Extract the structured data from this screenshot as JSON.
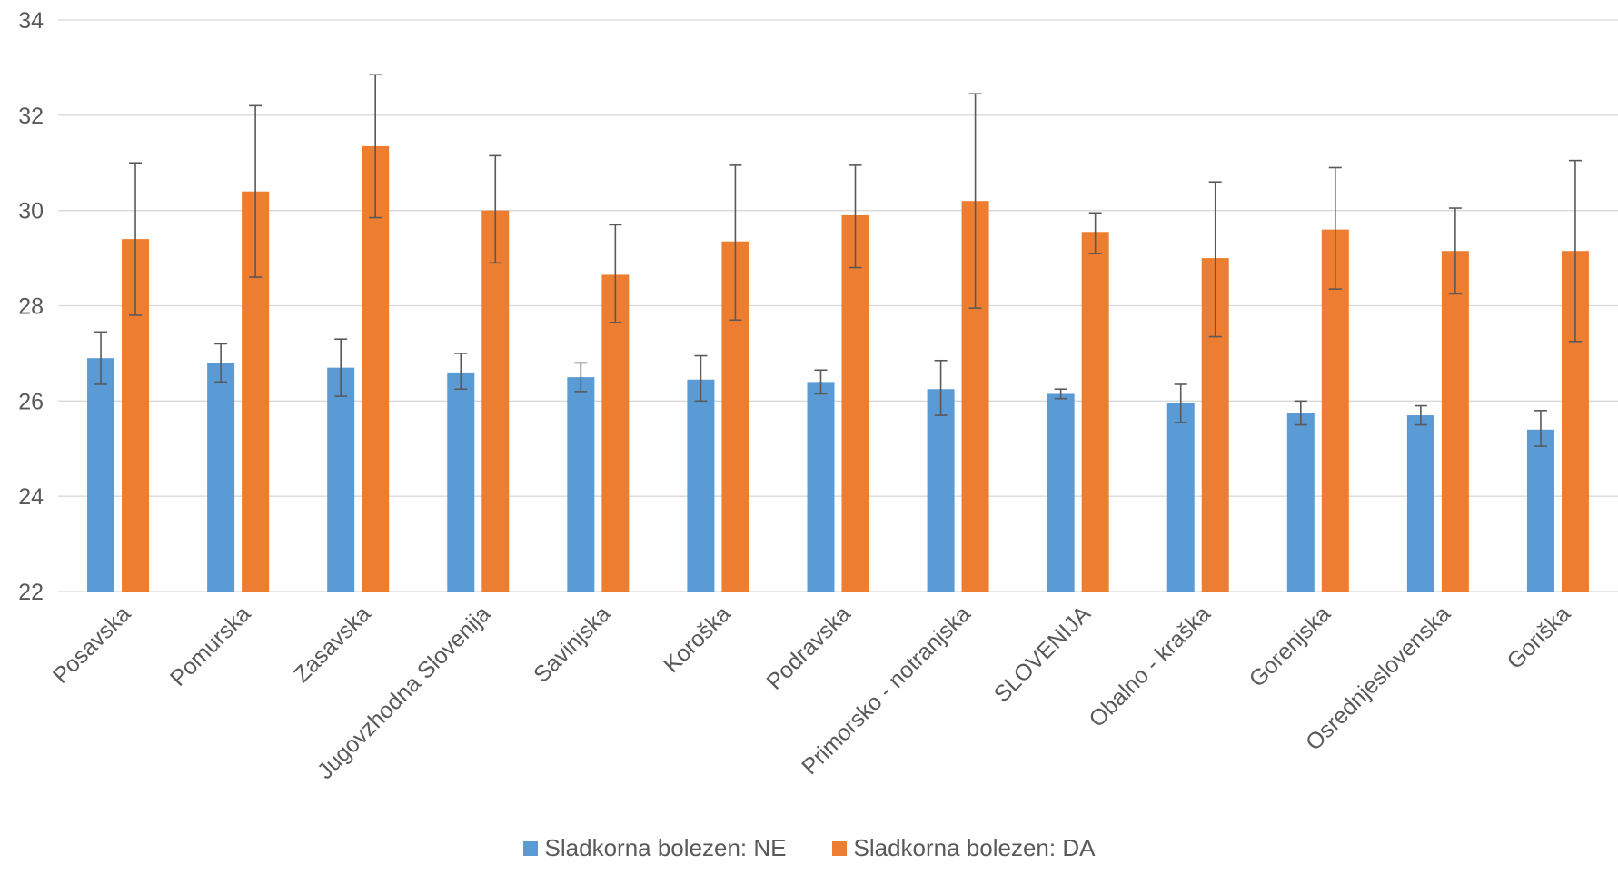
{
  "chart_data": {
    "type": "bar",
    "title": "",
    "xlabel": "",
    "ylabel": "",
    "ylim": [
      22,
      34
    ],
    "yticks": [
      22,
      24,
      26,
      28,
      30,
      32,
      34
    ],
    "grid": true,
    "legend_position": "bottom",
    "categories": [
      "Posavska",
      "Pomurska",
      "Zasavska",
      "Jugovzhodna Slovenija",
      "Savinjska",
      "Koroška",
      "Podravska",
      "Primorsko - notranjska",
      "SLOVENIJA",
      "Obalno - kraška",
      "Gorenjska",
      "Osrednjeslovenska",
      "Goriška"
    ],
    "series": [
      {
        "name": "Sladkorna bolezen: NE",
        "color": "#5B9BD5",
        "values": [
          26.9,
          26.8,
          26.7,
          26.6,
          26.5,
          26.45,
          26.4,
          26.25,
          26.15,
          25.95,
          25.75,
          25.7,
          25.4
        ],
        "error_low": [
          26.35,
          26.4,
          26.1,
          26.25,
          26.2,
          26.0,
          26.15,
          25.7,
          26.05,
          25.55,
          25.5,
          25.5,
          25.05
        ],
        "error_high": [
          27.45,
          27.2,
          27.3,
          27.0,
          26.8,
          26.95,
          26.65,
          26.85,
          26.25,
          26.35,
          26.0,
          25.9,
          25.8
        ]
      },
      {
        "name": "Sladkorna bolezen: DA",
        "color": "#ED7D31",
        "values": [
          29.4,
          30.4,
          31.35,
          30.0,
          28.65,
          29.35,
          29.9,
          30.2,
          29.55,
          29.0,
          29.6,
          29.15,
          29.15
        ],
        "error_low": [
          27.8,
          28.6,
          29.85,
          28.9,
          27.65,
          27.7,
          28.8,
          27.95,
          29.1,
          27.35,
          28.35,
          28.25,
          27.25
        ],
        "error_high": [
          31.0,
          32.2,
          32.85,
          31.15,
          29.7,
          30.95,
          30.95,
          32.45,
          29.95,
          30.6,
          30.9,
          30.05,
          31.05
        ]
      }
    ]
  }
}
